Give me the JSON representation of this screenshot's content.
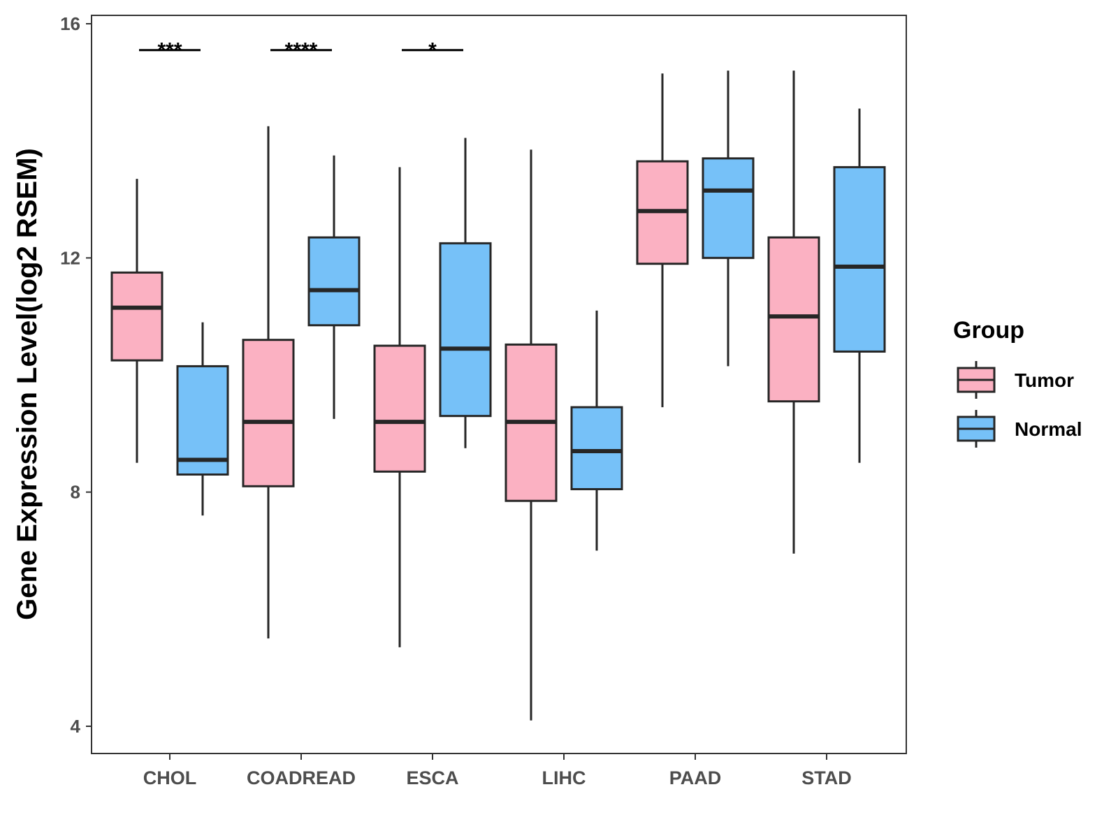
{
  "chart_data": {
    "type": "boxplot",
    "title": "",
    "xlabel": "",
    "ylabel": "Gene Expression Level(log2 RSEM)",
    "ylim": [
      3.6,
      16.15
    ],
    "yticks": [
      4,
      8,
      12,
      16
    ],
    "ytick_labels": [
      "4",
      "8",
      "12",
      "16"
    ],
    "grid": false,
    "categories": [
      "CHOL",
      "COADREAD",
      "ESCA",
      "LIHC",
      "PAAD",
      "STAD"
    ],
    "legend": {
      "title": "Group",
      "position": "right",
      "entries": [
        "Tumor",
        "Normal"
      ]
    },
    "series": [
      {
        "name": "Tumor",
        "color": "#fbb1c2",
        "boxes": [
          {
            "min": 8.5,
            "q1": 10.25,
            "median": 11.15,
            "q3": 11.75,
            "max": 13.35
          },
          {
            "min": 5.5,
            "q1": 8.1,
            "median": 9.2,
            "q3": 10.6,
            "max": 14.25
          },
          {
            "min": 5.35,
            "q1": 8.35,
            "median": 9.2,
            "q3": 10.5,
            "max": 13.55
          },
          {
            "min": 4.1,
            "q1": 7.85,
            "median": 9.2,
            "q3": 10.52,
            "max": 13.85
          },
          {
            "min": 9.45,
            "q1": 11.9,
            "median": 12.8,
            "q3": 13.65,
            "max": 15.15
          },
          {
            "min": 6.95,
            "q1": 9.55,
            "median": 11.0,
            "q3": 12.35,
            "max": 15.2
          }
        ]
      },
      {
        "name": "Normal",
        "color": "#76c1f8",
        "boxes": [
          {
            "min": 7.6,
            "q1": 8.3,
            "median": 8.55,
            "q3": 10.15,
            "max": 10.9
          },
          {
            "min": 9.25,
            "q1": 10.85,
            "median": 11.45,
            "q3": 12.35,
            "max": 13.75
          },
          {
            "min": 8.75,
            "q1": 9.3,
            "median": 10.45,
            "q3": 12.25,
            "max": 14.05
          },
          {
            "min": 7.0,
            "q1": 8.05,
            "median": 8.7,
            "q3": 9.45,
            "max": 11.1
          },
          {
            "min": 10.15,
            "q1": 12.0,
            "median": 13.15,
            "q3": 13.7,
            "max": 15.2
          },
          {
            "min": 8.5,
            "q1": 10.4,
            "median": 11.85,
            "q3": 13.55,
            "max": 14.55
          }
        ]
      }
    ],
    "significance": [
      {
        "category": "CHOL",
        "label": "***",
        "y": 15.55
      },
      {
        "category": "COADREAD",
        "label": "****",
        "y": 15.55
      },
      {
        "category": "ESCA",
        "label": "*",
        "y": 15.55
      }
    ]
  }
}
